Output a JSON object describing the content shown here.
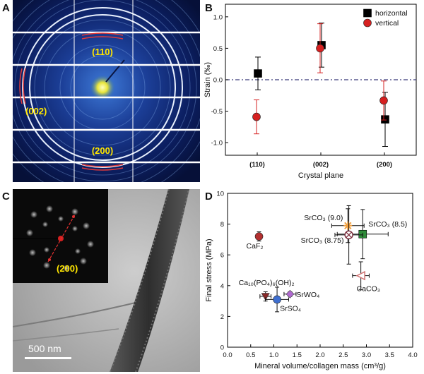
{
  "figure": {
    "panel_letters": [
      "A",
      "B",
      "C",
      "D"
    ],
    "panel_a": {
      "labels": [
        "(110)",
        "(002)",
        "(200)"
      ],
      "label_color": "#ffe600",
      "arc_color": "#e03a3a"
    },
    "panel_c": {
      "inset_label": "(200)",
      "scale_bar": "500 nm"
    }
  },
  "chart_data": [
    {
      "type": "scatter",
      "panel": "B",
      "xlabel": "Crystal plane",
      "ylabel": "Strain (‰)",
      "categories": [
        "(110)",
        "(002)",
        "(200)"
      ],
      "ylim": [
        -1.2,
        1.2
      ],
      "yticks": [
        "-1.0",
        "-0.5",
        "0.0",
        "0.5",
        "1.0"
      ],
      "reference_line": 0,
      "legend_position": "top-right",
      "series": [
        {
          "name": "horizontal",
          "color": "#000000",
          "marker": "square",
          "values": [
            0.1,
            0.55,
            -0.63
          ],
          "errors": [
            0.26,
            0.35,
            0.43
          ]
        },
        {
          "name": "vertical",
          "color": "#d62020",
          "marker": "circle",
          "values": [
            -0.59,
            0.5,
            -0.33
          ],
          "errors": [
            0.27,
            0.39,
            0.31
          ]
        }
      ]
    },
    {
      "type": "scatter",
      "panel": "D",
      "xlabel": "Mineral volume/collagen mass (cm³/g)",
      "ylabel": "Final stress (MPa)",
      "xlim": [
        0.0,
        4.0
      ],
      "ylim": [
        0,
        10
      ],
      "xticks": [
        "0.0",
        "0.5",
        "1.0",
        "1.5",
        "2.0",
        "2.5",
        "3.0",
        "3.5",
        "4.0"
      ],
      "yticks": [
        "0",
        "2",
        "4",
        "6",
        "8",
        "10"
      ],
      "points": [
        {
          "label": "CaF₂",
          "x": 0.68,
          "y": 7.2,
          "xerr": 0.0,
          "yerr": 0.3,
          "marker": "circle",
          "color": "#b33030"
        },
        {
          "label": "Ca₁₀(PO₄)₆(OH)₂",
          "x": 0.82,
          "y": 3.3,
          "xerr": 0.12,
          "yerr": 0.3,
          "marker": "triangle-down",
          "color": "#8a2a2a"
        },
        {
          "label": "SrWO₄",
          "x": 1.35,
          "y": 3.45,
          "xerr": 0.13,
          "yerr": 0.15,
          "marker": "diamond",
          "color": "#b06ad0"
        },
        {
          "label": "SrSO₄",
          "x": 1.07,
          "y": 3.1,
          "xerr": 0.25,
          "yerr": 0.8,
          "marker": "circle",
          "color": "#3f6fd0"
        },
        {
          "label": "SrCO₃ (9.0)",
          "x": 2.6,
          "y": 7.9,
          "xerr": 0.35,
          "yerr": 1.1,
          "marker": "star",
          "color": "#f0a040"
        },
        {
          "label": "SrCO₃ (8.5)",
          "x": 2.92,
          "y": 7.35,
          "xerr": 0.55,
          "yerr": 1.6,
          "marker": "square",
          "color": "#2e8b3a"
        },
        {
          "label": "SrCO₃ (8.75)",
          "x": 2.62,
          "y": 7.3,
          "xerr": 0.3,
          "yerr": 1.9,
          "marker": "circle-x",
          "color": "#7a2a3a"
        },
        {
          "label": "CaCO₃",
          "x": 2.88,
          "y": 4.65,
          "xerr": 0.18,
          "yerr": 0.9,
          "marker": "triangle-left",
          "color": "#d07070"
        }
      ]
    }
  ]
}
